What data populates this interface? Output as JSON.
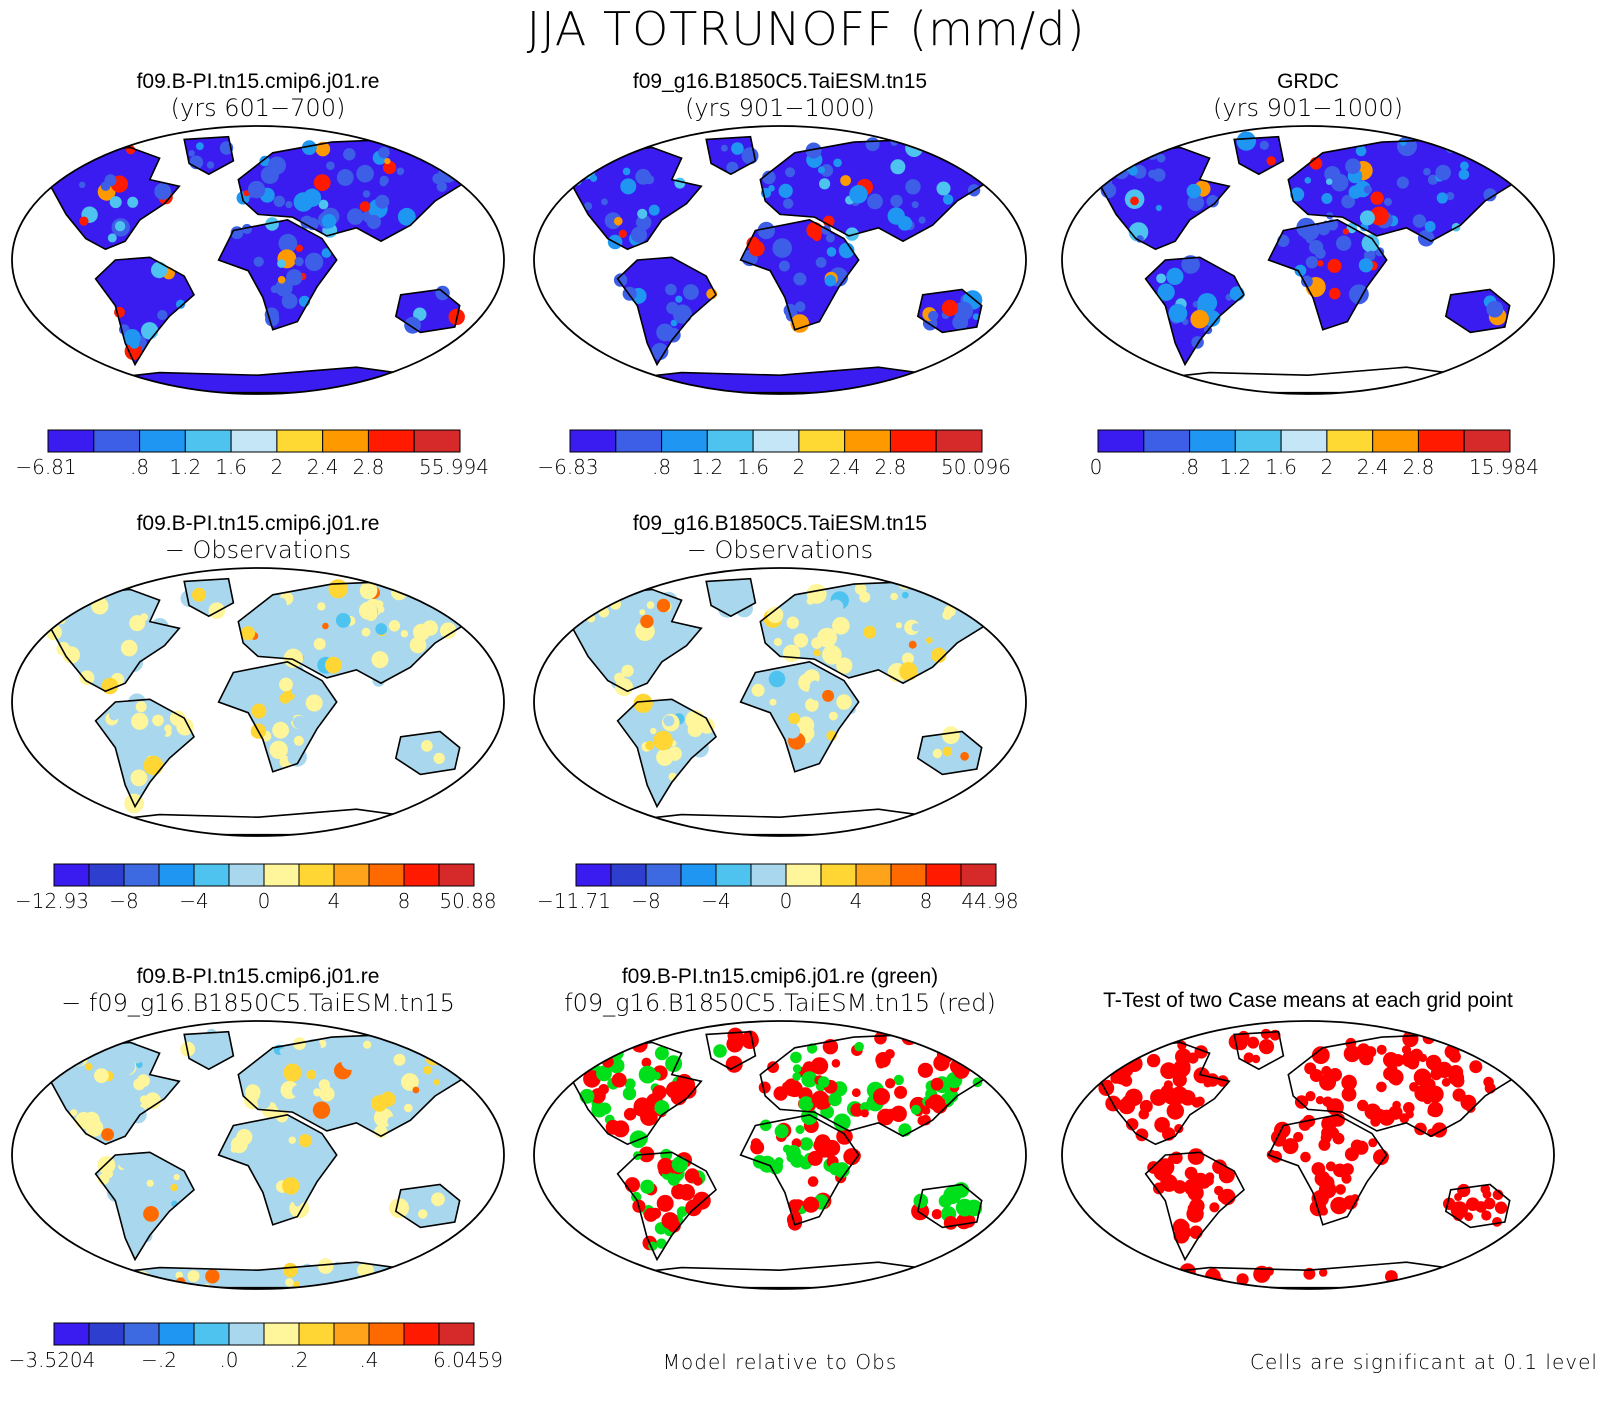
{
  "figure": {
    "title": "JJA TOTRUNOFF (mm/d)"
  },
  "colors": {
    "runoff": [
      "#3a1cf0",
      "#3d5ee6",
      "#1f96f2",
      "#4fc3f0",
      "#c5e6f7",
      "#ffd933",
      "#ff9900",
      "#ff1a00",
      "#d62a2a"
    ],
    "diff": [
      "#3a1cf0",
      "#2e3fcf",
      "#3d6ae0",
      "#1f96f2",
      "#4fc3f0",
      "#a9d8ee",
      "#fff59a",
      "#ffd633",
      "#ffa31a",
      "#ff6a00",
      "#ff1a00",
      "#d62a2a"
    ],
    "land": "#3a1cf0",
    "ocean": "#ffffff",
    "sig_red": "#ff0000",
    "sig_green": "#00e01a"
  },
  "panels": [
    {
      "id": "p1",
      "title1": "f09.B-PI.tn15.cmip6.j01.re",
      "title2": "(yrs 601−700)",
      "colorbar": {
        "min": "−6.81",
        "max": "55.994",
        "ticks": [
          ".8",
          "1.2",
          "1.6",
          "2",
          "2.4",
          "2.8"
        ]
      }
    },
    {
      "id": "p2",
      "title1": "f09_g16.B1850C5.TaiESM.tn15",
      "title2": "(yrs 901−1000)",
      "colorbar": {
        "min": "−6.83",
        "max": "50.096",
        "ticks": [
          ".8",
          "1.2",
          "1.6",
          "2",
          "2.4",
          "2.8"
        ]
      }
    },
    {
      "id": "p3",
      "title1": "GRDC",
      "title2": "(yrs 901−1000)",
      "colorbar": {
        "min": "0",
        "max": "15.984",
        "ticks": [
          ".8",
          "1.2",
          "1.6",
          "2",
          "2.4",
          "2.8"
        ]
      }
    },
    {
      "id": "p4",
      "title1": "f09.B-PI.tn15.cmip6.j01.re",
      "title2": "− Observations",
      "colorbar": {
        "min": "−12.93",
        "max": "50.88",
        "ticks": [
          "−8",
          "−4",
          "0",
          "4",
          "8"
        ]
      }
    },
    {
      "id": "p5",
      "title1": "f09_g16.B1850C5.TaiESM.tn15",
      "title2": "− Observations",
      "colorbar": {
        "min": "−11.71",
        "max": "44.98",
        "ticks": [
          "−8",
          "−4",
          "0",
          "4",
          "8"
        ]
      }
    },
    {
      "id": "p6",
      "title1": "f09.B-PI.tn15.cmip6.j01.re",
      "title2": "− f09_g16.B1850C5.TaiESM.tn15",
      "colorbar": {
        "min": "−3.5204",
        "max": "6.0459",
        "ticks": [
          "−.2",
          ".0",
          ".2",
          ".4"
        ]
      }
    },
    {
      "id": "p7",
      "title1": "f09.B-PI.tn15.cmip6.j01.re (green)",
      "title2": "f09_g16.B1850C5.TaiESM.tn15 (red)",
      "note": "Model relative to Obs"
    },
    {
      "id": "p8",
      "title1": "T-Test of two Case means at each grid point",
      "note": "Cells are significant at 0.1 level"
    }
  ]
}
